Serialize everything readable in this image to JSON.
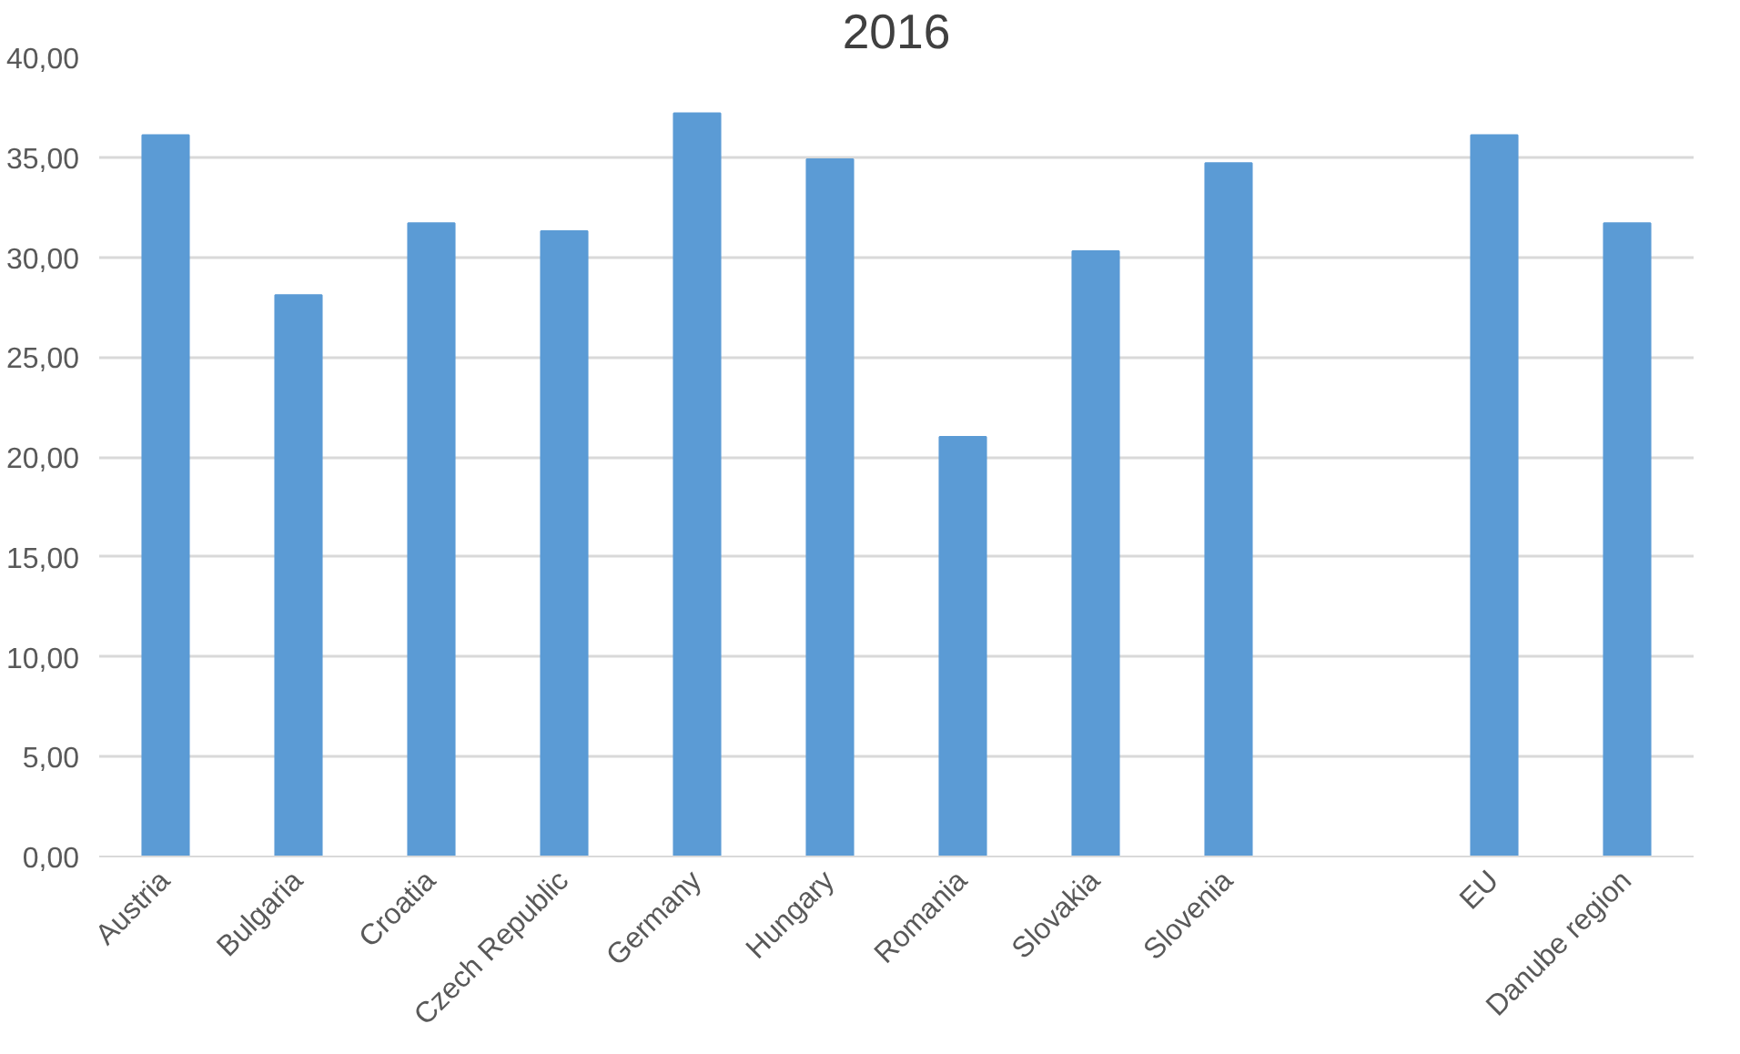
{
  "chart_data": {
    "type": "bar",
    "title": "2016",
    "categories": [
      "Austria",
      "Bulgaria",
      "Croatia",
      "Czech Republic",
      "Germany",
      "Hungary",
      "Romania",
      "Slovakia",
      "Slovenia",
      null,
      "EU",
      "Danube region"
    ],
    "values": [
      36.1,
      28.1,
      31.7,
      31.3,
      37.2,
      34.9,
      21.0,
      30.3,
      34.7,
      null,
      36.1,
      31.7
    ],
    "color": "#5b9bd5",
    "ylim": [
      0,
      40
    ],
    "yticks": [
      {
        "value": 0,
        "label": "0,00"
      },
      {
        "value": 5,
        "label": "5,00"
      },
      {
        "value": 10,
        "label": "10,00"
      },
      {
        "value": 15,
        "label": "15,00"
      },
      {
        "value": 20,
        "label": "20,00"
      },
      {
        "value": 25,
        "label": "25,00"
      },
      {
        "value": 30,
        "label": "30,00"
      },
      {
        "value": 35,
        "label": "35,00"
      },
      {
        "value": 40,
        "label": "40,00"
      }
    ],
    "grid": "y"
  }
}
